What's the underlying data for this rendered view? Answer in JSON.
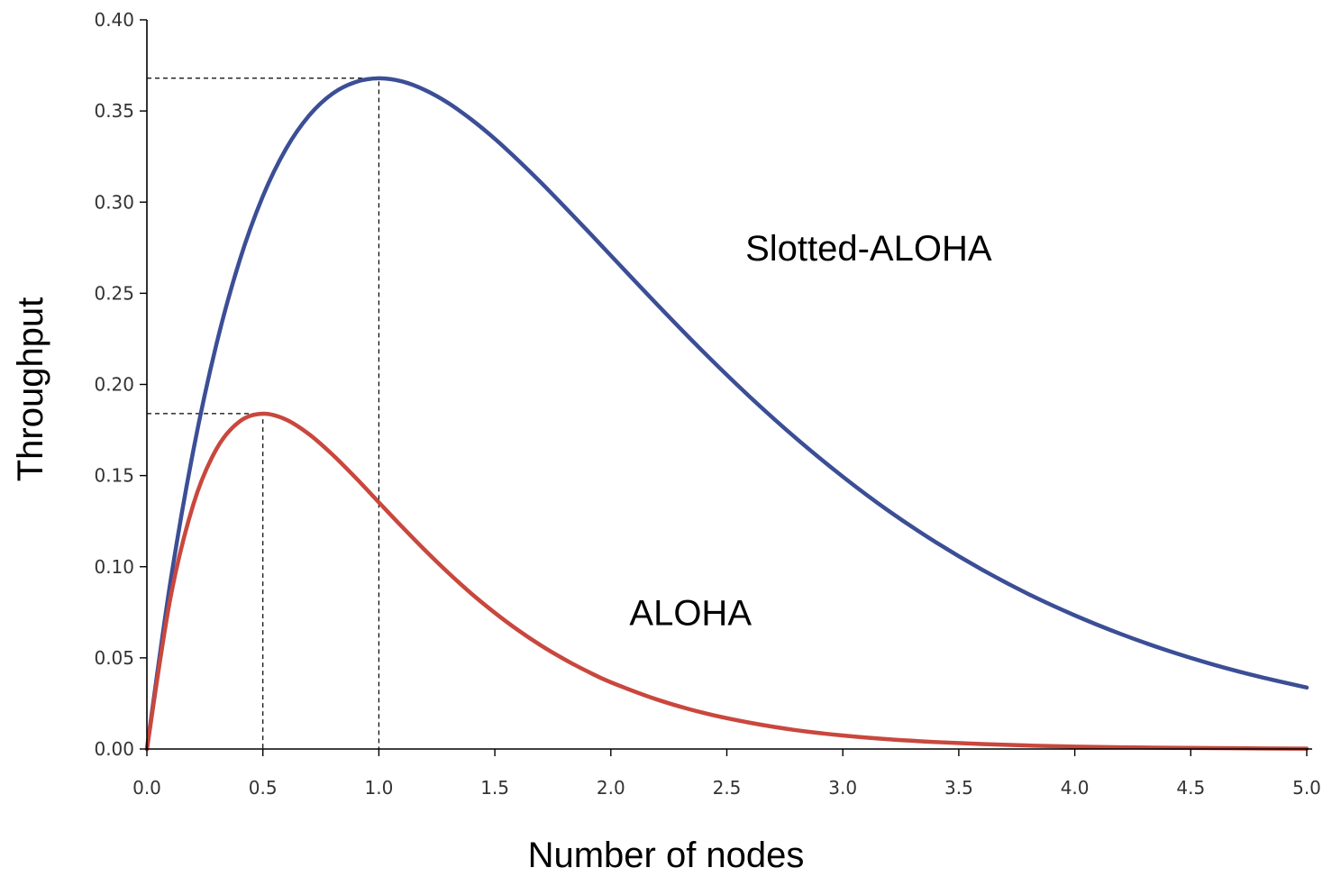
{
  "chart_data": {
    "type": "line",
    "title": "",
    "xlabel": "Number of nodes",
    "ylabel": "Throughput",
    "xlim": [
      0,
      5.0
    ],
    "ylim": [
      0,
      0.4
    ],
    "x_ticks": [
      "0.0",
      "0.5",
      "1.0",
      "1.5",
      "2.0",
      "2.5",
      "3.0",
      "3.5",
      "4.0",
      "4.5",
      "5.0"
    ],
    "y_ticks": [
      "0.00",
      "0.05",
      "0.10",
      "0.15",
      "0.20",
      "0.25",
      "0.30",
      "0.35",
      "0.40"
    ],
    "grid": false,
    "legend": "none",
    "series": [
      {
        "name": "Slotted-ALOHA",
        "color": "#3b4e96",
        "x": [
          0,
          0.1,
          0.2,
          0.3,
          0.4,
          0.5,
          0.6,
          0.7,
          0.8,
          0.9,
          1.0,
          1.1,
          1.2,
          1.3,
          1.4,
          1.5,
          1.6,
          1.7,
          1.8,
          1.9,
          2.0,
          2.2,
          2.4,
          2.6,
          2.8,
          3.0,
          3.2,
          3.4,
          3.6,
          3.8,
          4.0,
          4.2,
          4.4,
          4.6,
          4.8,
          5.0
        ],
        "y": [
          0.0,
          0.0905,
          0.1637,
          0.2222,
          0.2681,
          0.3033,
          0.3293,
          0.3476,
          0.3595,
          0.3659,
          0.3679,
          0.3662,
          0.3614,
          0.3543,
          0.3452,
          0.3347,
          0.323,
          0.3106,
          0.2975,
          0.2842,
          0.2707,
          0.2438,
          0.2177,
          0.1931,
          0.1703,
          0.1494,
          0.1304,
          0.1135,
          0.0984,
          0.085,
          0.0733,
          0.063,
          0.054,
          0.0462,
          0.0395,
          0.0337
        ]
      },
      {
        "name": "ALOHA",
        "color": "#c9473d",
        "x": [
          0,
          0.1,
          0.2,
          0.3,
          0.4,
          0.5,
          0.6,
          0.7,
          0.8,
          0.9,
          1.0,
          1.1,
          1.2,
          1.3,
          1.4,
          1.5,
          1.6,
          1.7,
          1.8,
          1.9,
          2.0,
          2.2,
          2.4,
          2.6,
          2.8,
          3.0,
          3.2,
          3.4,
          3.6,
          3.8,
          4.0,
          4.2,
          4.4,
          4.6,
          4.8,
          5.0
        ],
        "y": [
          0.0,
          0.0819,
          0.1341,
          0.1646,
          0.1797,
          0.1839,
          0.1807,
          0.1726,
          0.1615,
          0.1488,
          0.1353,
          0.1219,
          0.1089,
          0.0966,
          0.0851,
          0.0747,
          0.0652,
          0.0567,
          0.0492,
          0.0425,
          0.0366,
          0.0271,
          0.0198,
          0.0144,
          0.0103,
          0.0074,
          0.0053,
          0.0038,
          0.0027,
          0.0019,
          0.0013,
          0.0009,
          0.0007,
          0.0005,
          0.0003,
          0.0002
        ]
      }
    ],
    "reference_lines": [
      {
        "x": 1.0,
        "y": 0.368
      },
      {
        "x": 0.5,
        "y": 0.184
      }
    ],
    "annotations": [
      {
        "text": "Slotted-ALOHA",
        "x": 2.58,
        "y": 0.268
      },
      {
        "text": "ALOHA",
        "x": 2.08,
        "y": 0.068
      }
    ]
  }
}
